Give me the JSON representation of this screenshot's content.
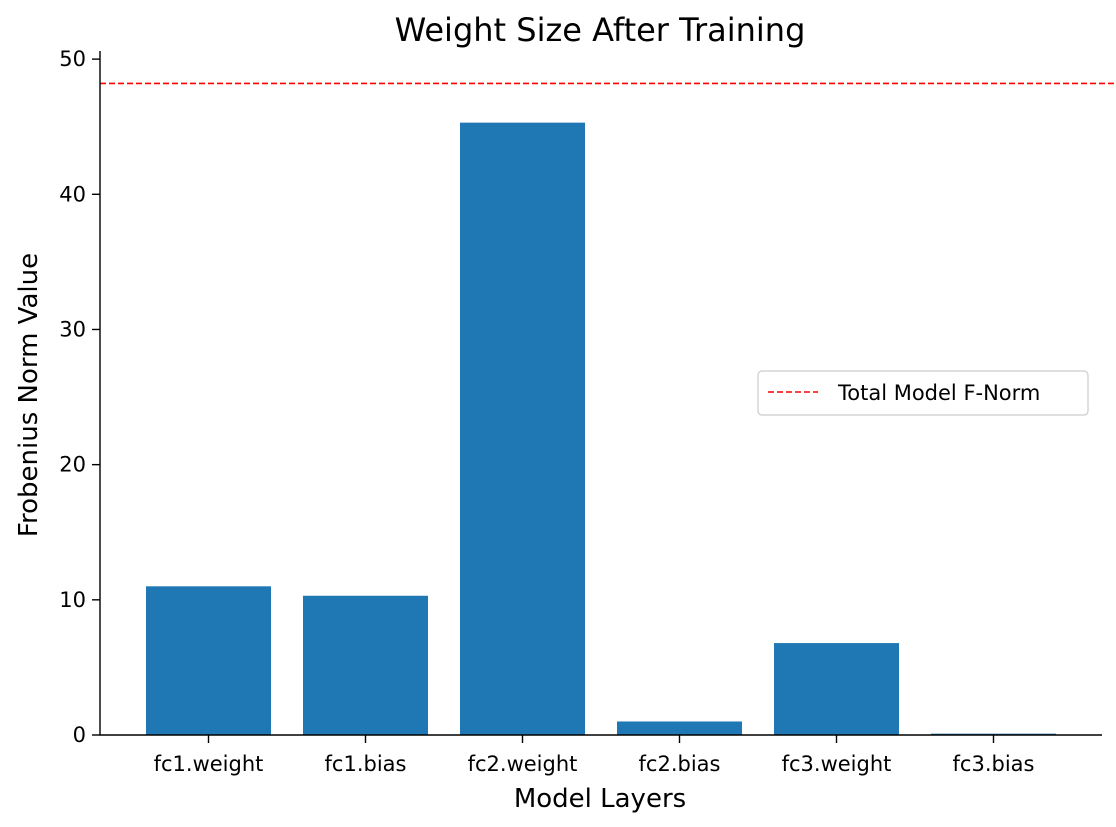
{
  "chart_data": {
    "type": "bar",
    "title": "Weight Size After Training",
    "xlabel": "Model Layers",
    "ylabel": "Frobenius Norm Value",
    "categories": [
      "fc1.weight",
      "fc1.bias",
      "fc2.weight",
      "fc2.bias",
      "fc3.weight",
      "fc3.bias"
    ],
    "values": [
      11.0,
      10.3,
      45.3,
      1.0,
      6.8,
      0.1
    ],
    "ylim": [
      0,
      50.6
    ],
    "yticks": [
      0,
      10,
      20,
      30,
      40,
      50
    ],
    "reference_line": {
      "label": "Total Model F-Norm",
      "value": 48.2,
      "style": "dashed",
      "color": "#ff0000"
    },
    "bar_color": "#1f77b4",
    "legend_position": "center-right",
    "grid": false
  }
}
